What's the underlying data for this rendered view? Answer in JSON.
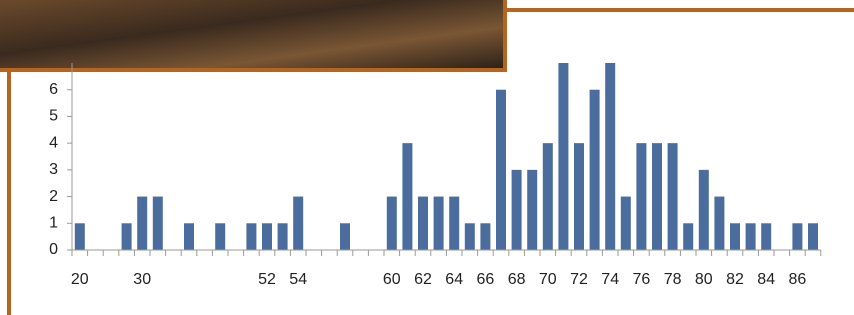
{
  "chart_data": {
    "type": "bar",
    "categories": [
      "20",
      null,
      null,
      null,
      "30",
      null,
      null,
      null,
      null,
      null,
      null,
      null,
      "52",
      null,
      "54",
      null,
      null,
      null,
      null,
      null,
      "60",
      null,
      "62",
      null,
      "64",
      null,
      "66",
      null,
      "68",
      null,
      "70",
      null,
      "72",
      null,
      "74",
      null,
      "76",
      null,
      "78",
      null,
      "80",
      null,
      "82",
      null,
      "84",
      null,
      "86",
      null
    ],
    "values": [
      1,
      0,
      0,
      1,
      2,
      2,
      0,
      1,
      0,
      1,
      0,
      1,
      1,
      1,
      2,
      0,
      0,
      1,
      0,
      0,
      2,
      4,
      2,
      2,
      2,
      1,
      1,
      6,
      3,
      3,
      4,
      7,
      4,
      6,
      7,
      2,
      4,
      4,
      4,
      1,
      3,
      2,
      1,
      1,
      1,
      0,
      1,
      1
    ],
    "color": "#4a6d9e",
    "ylim": [
      0,
      7
    ],
    "yticks": [
      0,
      1,
      2,
      3,
      4,
      5,
      6
    ]
  }
}
